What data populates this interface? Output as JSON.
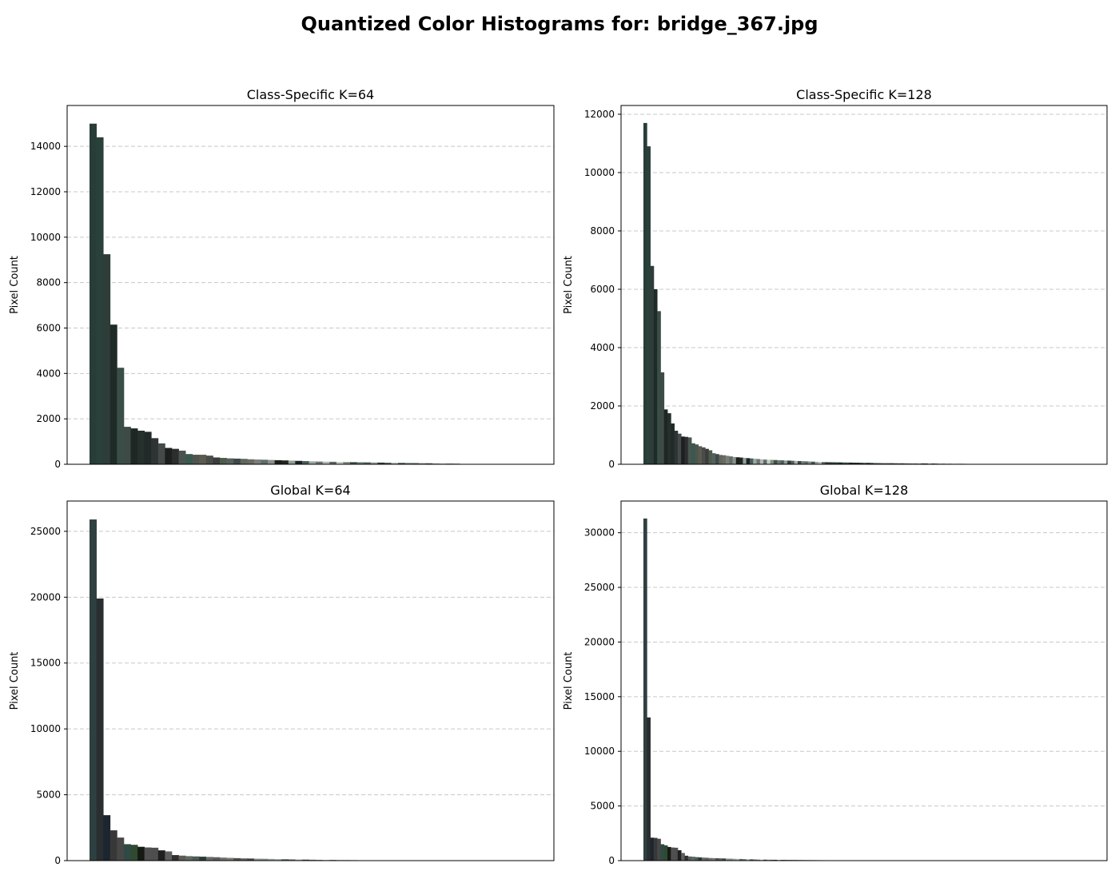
{
  "figure": {
    "title": "Quantized Color Histograms for: bridge_367.jpg"
  },
  "chart_data": [
    {
      "type": "bar",
      "title": "Class-Specific K=64",
      "xlabel": "",
      "ylabel": "Pixel Count",
      "ylim": [
        0,
        15800
      ],
      "yticks": [
        0,
        2000,
        4000,
        6000,
        8000,
        10000,
        12000,
        14000
      ],
      "grid": "y-dashed",
      "total_bins": 64,
      "values": [
        15000,
        14400,
        9250,
        6150,
        4250,
        1650,
        1580,
        1480,
        1430,
        1150,
        920,
        720,
        680,
        600,
        450,
        420,
        420,
        380,
        300,
        280,
        260,
        250,
        240,
        220,
        210,
        200,
        190,
        180,
        170,
        160,
        150,
        140,
        130,
        120,
        115,
        110,
        105,
        100,
        95,
        90,
        85,
        80,
        75,
        70,
        65,
        60,
        60,
        55,
        50,
        45,
        40,
        35,
        30,
        25
      ],
      "colors": [
        "#283d38",
        "#2a403b",
        "#2e3d38",
        "#1e2b27",
        "#3a4d47",
        "#3d4a45",
        "#1f2624",
        "#252f2c",
        "#222a28",
        "#2e3434",
        "#444a48",
        "#1c1f1e",
        "#2b2e2d",
        "#4a544f",
        "#38594e",
        "#4e5450",
        "#5b5b50",
        "#4a4c48",
        "#3a3d3b",
        "#4d5b4b",
        "#56605d",
        "#3e4947",
        "#60675f",
        "#6b6b60",
        "#7a7f7a",
        "#616d69",
        "#8a918c",
        "#1a1f1c",
        "#23251f",
        "#8fa096",
        "#1a2226",
        "#4b5c56",
        "#9aa9a3",
        "#6e7471",
        "#b2b9b4",
        "#5f6a63",
        "#c7ccc6",
        "#7c8d80",
        "#3f4f49",
        "#687970",
        "#4f5d5b",
        "#8c9c95",
        "#2f3a37",
        "#545e5a",
        "#a9b0a8",
        "#3c4744",
        "#6f7c73",
        "#5b6862",
        "#7f8a84",
        "#49534f",
        "#96a19a",
        "#b7bfb8",
        "#5a605c",
        "#30393c"
      ]
    },
    {
      "type": "bar",
      "title": "Class-Specific K=128",
      "xlabel": "",
      "ylabel": "Pixel Count",
      "ylim": [
        0,
        12300
      ],
      "yticks": [
        0,
        2000,
        4000,
        6000,
        8000,
        10000,
        12000
      ],
      "grid": "y-dashed",
      "total_bins": 128,
      "values": [
        11700,
        10900,
        6800,
        6000,
        5250,
        3150,
        1880,
        1750,
        1400,
        1150,
        1050,
        950,
        940,
        920,
        720,
        680,
        620,
        580,
        530,
        480,
        380,
        350,
        320,
        310,
        290,
        270,
        250,
        240,
        230,
        220,
        210,
        200,
        190,
        180,
        170,
        160,
        155,
        150,
        145,
        140,
        135,
        130,
        125,
        120,
        115,
        110,
        105,
        100,
        95,
        90,
        85,
        80,
        75,
        72,
        70,
        68,
        66,
        64,
        62,
        60,
        58,
        56,
        54,
        52,
        50,
        48,
        46,
        44,
        42,
        40,
        39,
        38,
        37,
        36,
        35,
        34,
        33,
        32,
        31,
        30,
        29,
        28,
        27,
        26,
        25,
        24,
        23,
        22,
        21,
        20,
        19,
        18,
        17,
        16
      ],
      "colors": [
        "#283d38",
        "#2a403b",
        "#2e3d38",
        "#1e2b27",
        "#3a4d47",
        "#3d4a45",
        "#1f2624",
        "#252f2c",
        "#222a28",
        "#2e3434",
        "#444a48",
        "#1c1f1e",
        "#2b2e2d",
        "#4a544f",
        "#38594e",
        "#4e5450",
        "#5b5b50",
        "#4a4c48",
        "#3a3d3b",
        "#4d5b4b",
        "#56605d",
        "#3e4947",
        "#60675f",
        "#6b6b60",
        "#7a7f7a",
        "#616d69",
        "#8a918c",
        "#1a1f1c",
        "#23251f",
        "#8fa096",
        "#1a2226",
        "#4b5c56",
        "#9aa9a3",
        "#6e7471",
        "#b2b9b4",
        "#5f6a63",
        "#c7ccc6",
        "#7c8d80",
        "#3f4f49",
        "#687970",
        "#4f5d5b",
        "#8c9c95",
        "#2f3a37",
        "#545e5a",
        "#a9b0a8",
        "#3c4744",
        "#6f7c73",
        "#5b6862",
        "#7f8a84",
        "#49534f",
        "#96a19a",
        "#b7bfb8",
        "#5a605c",
        "#30393c",
        "#283d38",
        "#2a403b",
        "#2e3d38",
        "#1e2b27",
        "#3a4d47",
        "#3d4a45",
        "#1f2624",
        "#252f2c",
        "#222a28",
        "#2e3434",
        "#444a48",
        "#1c1f1e",
        "#2b2e2d",
        "#4a544f",
        "#38594e",
        "#4e5450",
        "#5b5b50",
        "#4a4c48",
        "#3a3d3b",
        "#4d5b4b",
        "#56605d",
        "#3e4947",
        "#60675f",
        "#6b6b60",
        "#7a7f7a",
        "#616d69",
        "#8a918c",
        "#1a1f1c",
        "#23251f",
        "#8fa096",
        "#1a2226",
        "#4b5c56",
        "#9aa9a3",
        "#6e7471",
        "#b2b9b4",
        "#5f6a63",
        "#c7ccc6",
        "#7c8d80",
        "#3f4f49",
        "#687970"
      ]
    },
    {
      "type": "bar",
      "title": "Global K=64",
      "xlabel": "",
      "ylabel": "Pixel Count",
      "ylim": [
        0,
        27300
      ],
      "yticks": [
        0,
        5000,
        10000,
        15000,
        20000,
        25000
      ],
      "grid": "y-dashed",
      "total_bins": 64,
      "values": [
        25900,
        19900,
        3450,
        2300,
        1750,
        1250,
        1200,
        1050,
        1000,
        980,
        780,
        700,
        420,
        380,
        340,
        320,
        300,
        280,
        260,
        230,
        210,
        190,
        170,
        160,
        150,
        140,
        130,
        120,
        110,
        100,
        90,
        80,
        70,
        60,
        55,
        50,
        45,
        40,
        35,
        30,
        25,
        20
      ],
      "colors": [
        "#2e403f",
        "#292e30",
        "#1c2530",
        "#383838",
        "#474747",
        "#2f4a46",
        "#2f4a30",
        "#151b13",
        "#505050",
        "#4e4e4e",
        "#1f1f1f",
        "#5e5e5e",
        "#2f2f2f",
        "#5d5d55",
        "#5f6a63",
        "#4f5b56",
        "#2b3d35",
        "#6b6b6b",
        "#5a605c",
        "#707070",
        "#7a7a70",
        "#4b544f",
        "#606060",
        "#3c4744",
        "#8a918c",
        "#7f8a84",
        "#96a19a",
        "#a9b0a8",
        "#5b6862",
        "#6f7c73",
        "#b2b9b4",
        "#49534f",
        "#687970",
        "#7c8d80",
        "#c7ccc6",
        "#3f4f49",
        "#8c9c95",
        "#545e5a",
        "#2f3a37",
        "#b7bfb8",
        "#30393c",
        "#1a2226"
      ]
    },
    {
      "type": "bar",
      "title": "Global K=128",
      "xlabel": "",
      "ylabel": "Pixel Count",
      "ylim": [
        0,
        32900
      ],
      "yticks": [
        0,
        5000,
        10000,
        15000,
        20000,
        25000,
        30000
      ],
      "grid": "y-dashed",
      "total_bins": 128,
      "values": [
        31300,
        13100,
        2100,
        2080,
        2000,
        1500,
        1400,
        1250,
        1200,
        1180,
        950,
        700,
        450,
        380,
        360,
        320,
        300,
        280,
        260,
        240,
        230,
        220,
        210,
        200,
        190,
        180,
        170,
        160,
        150,
        140,
        130,
        120,
        110,
        100,
        95,
        90,
        85,
        80,
        75,
        70,
        65,
        60,
        58,
        56,
        54,
        52,
        50,
        48,
        46,
        44,
        42,
        40,
        38,
        36,
        34,
        32,
        30,
        28,
        26,
        24,
        22,
        20
      ],
      "colors": [
        "#2e403f",
        "#292e30",
        "#1c2530",
        "#383838",
        "#474747",
        "#2f4a46",
        "#2f4a30",
        "#151b13",
        "#505050",
        "#4e4e4e",
        "#1f1f1f",
        "#5e5e5e",
        "#2f2f2f",
        "#5d5d55",
        "#5f6a63",
        "#4f5b56",
        "#2b3d35",
        "#6b6b6b",
        "#5a605c",
        "#707070",
        "#7a7a70",
        "#4b544f",
        "#606060",
        "#3c4744",
        "#8a918c",
        "#7f8a84",
        "#96a19a",
        "#a9b0a8",
        "#5b6862",
        "#6f7c73",
        "#b2b9b4",
        "#49534f",
        "#687970",
        "#7c8d80",
        "#c7ccc6",
        "#3f4f49",
        "#8c9c95",
        "#545e5a",
        "#2f3a37",
        "#b7bfb8",
        "#30393c",
        "#1a2226",
        "#2e403f",
        "#292e30",
        "#1c2530",
        "#383838",
        "#474747",
        "#2f4a46",
        "#2f4a30",
        "#151b13",
        "#505050",
        "#4e4e4e",
        "#1f1f1f",
        "#5e5e5e",
        "#2f2f2f",
        "#5d5d55",
        "#5f6a63",
        "#4f5b56",
        "#2b3d35",
        "#6b6b6b",
        "#5a605c",
        "#707070"
      ]
    }
  ]
}
